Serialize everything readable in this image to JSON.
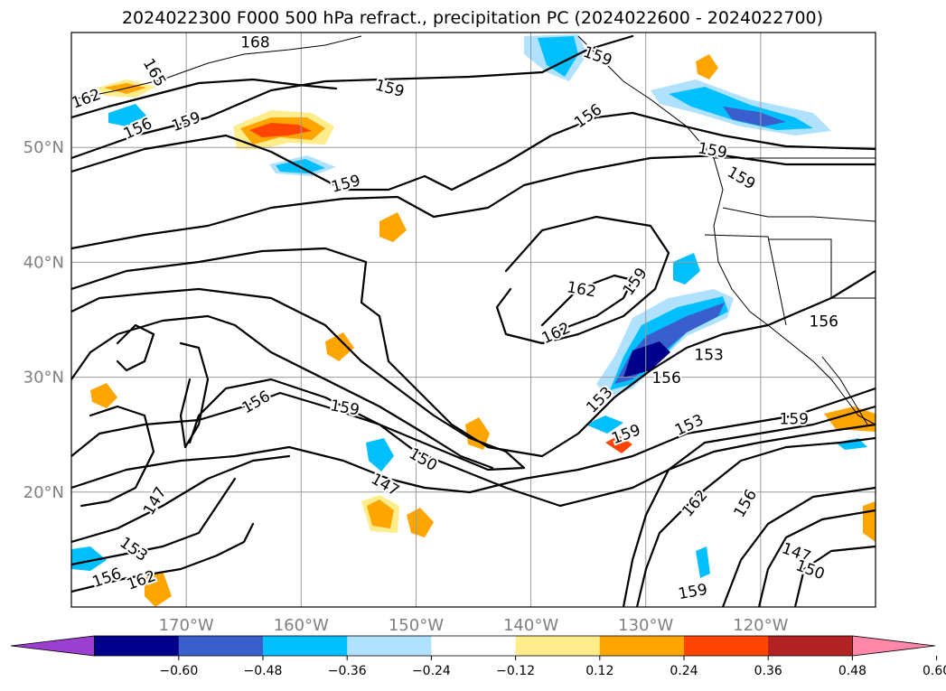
{
  "chart_data": {
    "type": "contour-map",
    "title": "2024022300 F000 500 hPa refract., precipitation PC (2024022600 - 2024022700)",
    "lon_range": [
      -180,
      -110
    ],
    "lat_range": [
      10,
      60
    ],
    "lon_ticks": [
      {
        "value": -170,
        "label": "170°W"
      },
      {
        "value": -160,
        "label": "160°W"
      },
      {
        "value": -150,
        "label": "150°W"
      },
      {
        "value": -140,
        "label": "140°W"
      },
      {
        "value": -130,
        "label": "130°W"
      },
      {
        "value": -120,
        "label": "120°W"
      }
    ],
    "lat_ticks": [
      {
        "value": 20,
        "label": "20°N"
      },
      {
        "value": 30,
        "label": "30°N"
      },
      {
        "value": 40,
        "label": "40°N"
      },
      {
        "value": 50,
        "label": "50°N"
      }
    ],
    "grid": true,
    "colorbar": {
      "orientation": "horizontal",
      "extend": "both",
      "levels": [
        -0.6,
        -0.48,
        -0.36,
        -0.24,
        -0.12,
        0.12,
        0.24,
        0.36,
        0.48,
        0.6
      ],
      "tick_labels": [
        "−0.60",
        "−0.48",
        "−0.36",
        "−0.24",
        "−0.12",
        "0.12",
        "0.24",
        "0.36",
        "0.48",
        "0.60"
      ],
      "colors": [
        "#9a3fd0",
        "#00008b",
        "#3a5fcd",
        "#00bfff",
        "#b0e2ff",
        "#ffffff",
        "#ffec8b",
        "#ffa500",
        "#ff4500",
        "#b22222",
        "#ff88aa"
      ]
    },
    "contour_labels": [
      {
        "text": "165",
        "lon": -172.8,
        "lat": 56.5,
        "rot": 60
      },
      {
        "text": "168",
        "lon": -164.0,
        "lat": 59.1,
        "rot": 0
      },
      {
        "text": "162",
        "lon": -178.7,
        "lat": 54.2,
        "rot": -20
      },
      {
        "text": "156",
        "lon": -174.2,
        "lat": 51.6,
        "rot": -25
      },
      {
        "text": "159",
        "lon": -170.0,
        "lat": 52.2,
        "rot": -20
      },
      {
        "text": "159",
        "lon": -152.3,
        "lat": 55.1,
        "rot": 15
      },
      {
        "text": "159",
        "lon": -134.2,
        "lat": 57.9,
        "rot": 20
      },
      {
        "text": "156",
        "lon": -135.0,
        "lat": 52.7,
        "rot": -35
      },
      {
        "text": "159",
        "lon": -156.1,
        "lat": 46.8,
        "rot": -15
      },
      {
        "text": "159",
        "lon": -124.2,
        "lat": 49.7,
        "rot": 10
      },
      {
        "text": "159",
        "lon": -121.7,
        "lat": 47.3,
        "rot": 30
      },
      {
        "text": "162",
        "lon": -135.6,
        "lat": 37.6,
        "rot": 10
      },
      {
        "text": "159",
        "lon": -130.9,
        "lat": 38.3,
        "rot": -55
      },
      {
        "text": "162",
        "lon": -137.8,
        "lat": 33.8,
        "rot": -25
      },
      {
        "text": "156",
        "lon": -114.5,
        "lat": 34.8,
        "rot": 0
      },
      {
        "text": "153",
        "lon": -124.5,
        "lat": 31.9,
        "rot": 0
      },
      {
        "text": "156",
        "lon": -128.2,
        "lat": 29.9,
        "rot": 0
      },
      {
        "text": "153",
        "lon": -134.0,
        "lat": 28.0,
        "rot": -45
      },
      {
        "text": "156",
        "lon": -163.9,
        "lat": 27.8,
        "rot": -30
      },
      {
        "text": "159",
        "lon": -156.2,
        "lat": 27.3,
        "rot": 10
      },
      {
        "text": "159",
        "lon": -131.7,
        "lat": 25.0,
        "rot": -20
      },
      {
        "text": "153",
        "lon": -126.2,
        "lat": 25.8,
        "rot": -25
      },
      {
        "text": "159",
        "lon": -117.1,
        "lat": 26.3,
        "rot": 0
      },
      {
        "text": "150",
        "lon": -149.4,
        "lat": 22.8,
        "rot": 30
      },
      {
        "text": "147",
        "lon": -152.7,
        "lat": 20.6,
        "rot": 30
      },
      {
        "text": "147",
        "lon": -172.7,
        "lat": 19.2,
        "rot": -60
      },
      {
        "text": "162",
        "lon": -125.7,
        "lat": 19.0,
        "rot": -50
      },
      {
        "text": "156",
        "lon": -121.3,
        "lat": 19.0,
        "rot": -60
      },
      {
        "text": "153",
        "lon": -174.6,
        "lat": 15.0,
        "rot": 35
      },
      {
        "text": "156",
        "lon": -176.9,
        "lat": 12.5,
        "rot": -20
      },
      {
        "text": "162",
        "lon": -173.9,
        "lat": 12.3,
        "rot": -20
      },
      {
        "text": "147",
        "lon": -116.9,
        "lat": 14.7,
        "rot": 20
      },
      {
        "text": "150",
        "lon": -115.7,
        "lat": 13.2,
        "rot": 20
      },
      {
        "text": "159",
        "lon": -125.9,
        "lat": 11.3,
        "rot": -10
      }
    ]
  }
}
